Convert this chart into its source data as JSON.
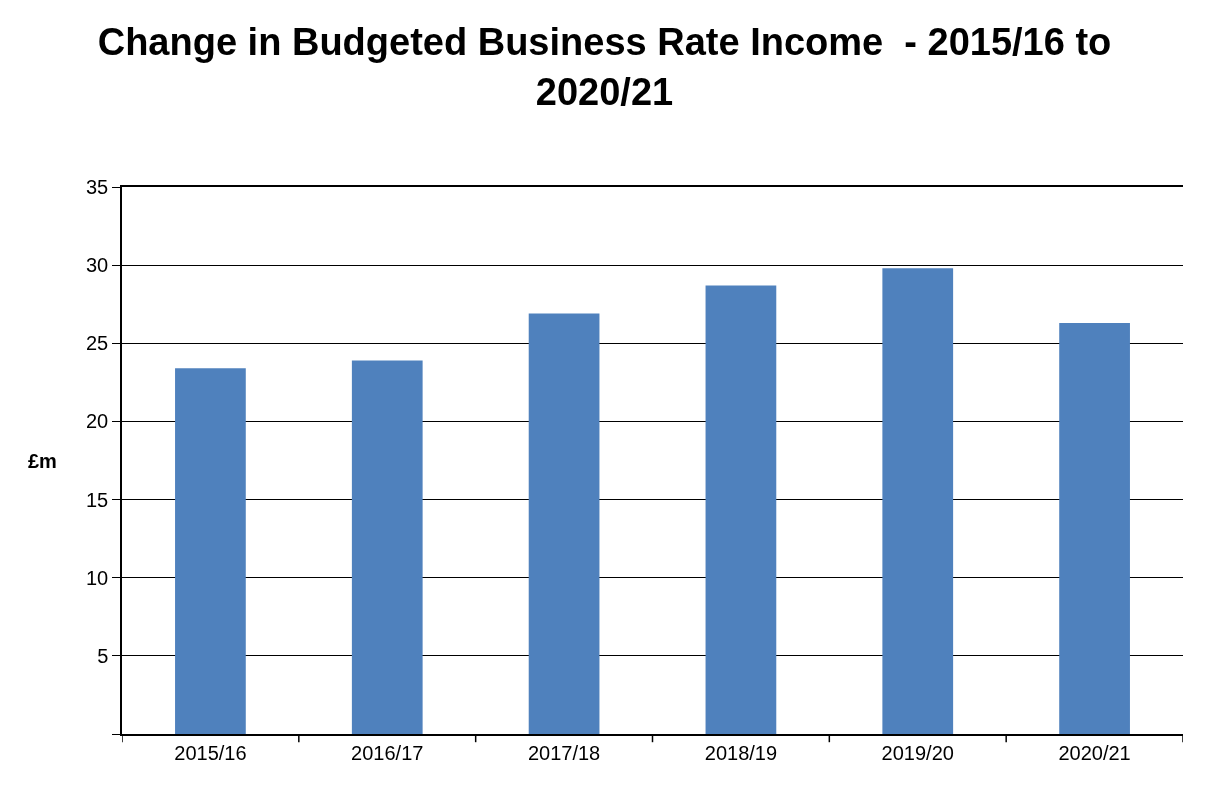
{
  "chart_data": {
    "type": "bar",
    "title": "Change in Budgeted Business Rate Income  - 2015/16 to 2020/21",
    "ylabel": "£m",
    "categories": [
      "2015/16",
      "2016/17",
      "2017/18",
      "2018/19",
      "2019/20",
      "2020/21"
    ],
    "values": [
      23.4,
      23.9,
      26.9,
      28.7,
      29.8,
      26.3
    ],
    "color": "#4f81bd",
    "ylim": [
      0,
      35
    ],
    "yticks": [
      {
        "value": 0,
        "label": null
      },
      5,
      10,
      15,
      20,
      25,
      30,
      35
    ],
    "grid": "y"
  }
}
